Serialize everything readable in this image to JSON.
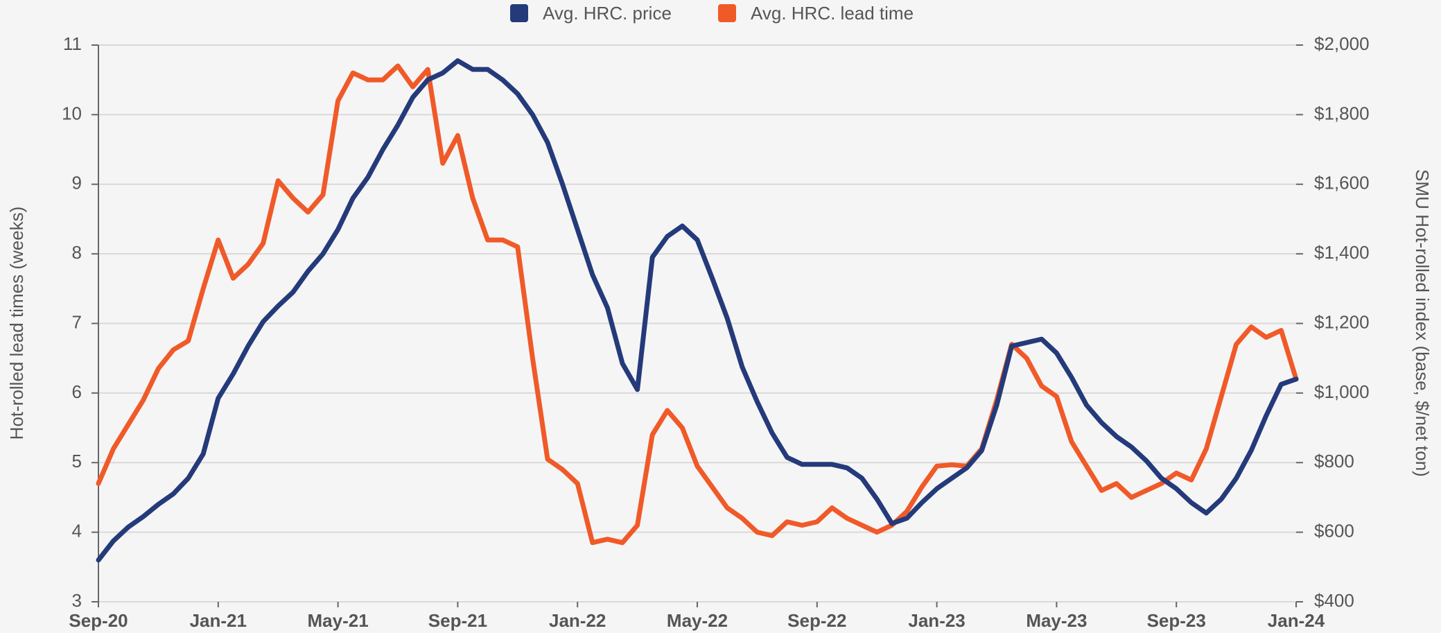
{
  "chart_data": {
    "type": "line",
    "y_label": "Hot-rolled lead times (weeks)",
    "y2_label": "SMU Hot-rolled index (base, $/net ton)",
    "legend": "top",
    "grid": true,
    "xlim": [
      0,
      40
    ],
    "xticks": [
      {
        "value": 0,
        "label": "Sep-20"
      },
      {
        "value": 4,
        "label": "Jan-21"
      },
      {
        "value": 8,
        "label": "May-21"
      },
      {
        "value": 12,
        "label": "Sep-21"
      },
      {
        "value": 16,
        "label": "Jan-22"
      },
      {
        "value": 20,
        "label": "May-22"
      },
      {
        "value": 24,
        "label": "Sep-22"
      },
      {
        "value": 28,
        "label": "Jan-23"
      },
      {
        "value": 32,
        "label": "May-23"
      },
      {
        "value": 36,
        "label": "Sep-23"
      },
      {
        "value": 40,
        "label": "Jan-24"
      }
    ],
    "ylim": [
      3,
      11
    ],
    "yticks": [
      3,
      4,
      5,
      6,
      7,
      8,
      9,
      10,
      11
    ],
    "y2lim": [
      400,
      2000
    ],
    "y2ticks": [
      {
        "value": 400,
        "label": "$400"
      },
      {
        "value": 600,
        "label": "$600"
      },
      {
        "value": 800,
        "label": "$800"
      },
      {
        "value": 1000,
        "label": "$1,000"
      },
      {
        "value": 1200,
        "label": "$1,200"
      },
      {
        "value": 1400,
        "label": "$1,400"
      },
      {
        "value": 1600,
        "label": "$1,600"
      },
      {
        "value": 1800,
        "label": "$1,800"
      },
      {
        "value": 2000,
        "label": "$2,000"
      }
    ],
    "x": [
      0,
      0.5,
      1,
      1.5,
      2,
      2.5,
      3,
      3.5,
      4,
      4.5,
      5,
      5.5,
      6,
      6.5,
      7,
      7.5,
      8,
      8.5,
      9,
      9.5,
      10,
      10.5,
      11,
      11.5,
      12,
      12.5,
      13,
      13.5,
      14,
      14.5,
      15,
      15.5,
      16,
      16.5,
      17,
      17.5,
      18,
      18.5,
      19,
      19.5,
      20,
      20.5,
      21,
      21.5,
      22,
      22.5,
      23,
      23.5,
      24,
      24.5,
      25,
      25.5,
      26,
      26.5,
      27,
      27.5,
      28,
      28.5,
      29,
      29.5,
      30,
      30.5,
      31,
      31.5,
      32,
      32.5,
      33,
      33.5,
      34,
      34.5,
      35,
      35.5,
      36,
      36.5,
      37,
      37.5,
      38,
      38.5,
      39,
      39.5,
      40
    ],
    "series": [
      {
        "name": "Avg. HRC. price",
        "color": "#243a7a",
        "axis": "y2",
        "values": [
          520,
          575,
          615,
          645,
          680,
          710,
          755,
          825,
          985,
          1055,
          1135,
          1205,
          1250,
          1290,
          1350,
          1400,
          1470,
          1560,
          1620,
          1700,
          1770,
          1850,
          1900,
          1920,
          1955,
          1930,
          1930,
          1900,
          1860,
          1800,
          1720,
          1600,
          1470,
          1340,
          1245,
          1085,
          1010,
          1390,
          1450,
          1480,
          1440,
          1330,
          1215,
          1075,
          975,
          885,
          815,
          795,
          795,
          795,
          785,
          755,
          695,
          625,
          640,
          685,
          725,
          755,
          785,
          835,
          965,
          1135,
          1145,
          1155,
          1115,
          1045,
          965,
          915,
          875,
          845,
          805,
          755,
          725,
          685,
          655,
          695,
          755,
          835,
          935,
          1025,
          1040
        ]
      },
      {
        "name": "Avg. HRC. lead time",
        "color": "#f05a28",
        "values": [
          4.7,
          5.2,
          5.55,
          5.9,
          6.35,
          6.62,
          6.75,
          7.5,
          8.2,
          7.65,
          7.85,
          8.15,
          9.05,
          8.8,
          8.6,
          8.85,
          10.2,
          10.6,
          10.5,
          10.5,
          10.7,
          10.4,
          10.65,
          9.3,
          9.7,
          8.8,
          8.2,
          8.2,
          8.1,
          6.5,
          5.05,
          4.9,
          4.7,
          3.85,
          3.9,
          3.85,
          4.1,
          5.4,
          5.75,
          5.5,
          4.95,
          4.65,
          4.35,
          4.2,
          4.0,
          3.95,
          4.15,
          4.1,
          4.15,
          4.35,
          4.2,
          4.1,
          4.0,
          4.1,
          4.3,
          4.65,
          4.95,
          4.97,
          4.95,
          5.2,
          5.9,
          6.7,
          6.5,
          6.1,
          5.95,
          5.3,
          4.95,
          4.6,
          4.7,
          4.5,
          4.6,
          4.7,
          4.85,
          4.75,
          5.2,
          5.95,
          6.7,
          6.95,
          6.8,
          6.9,
          6.2
        ]
      }
    ]
  }
}
